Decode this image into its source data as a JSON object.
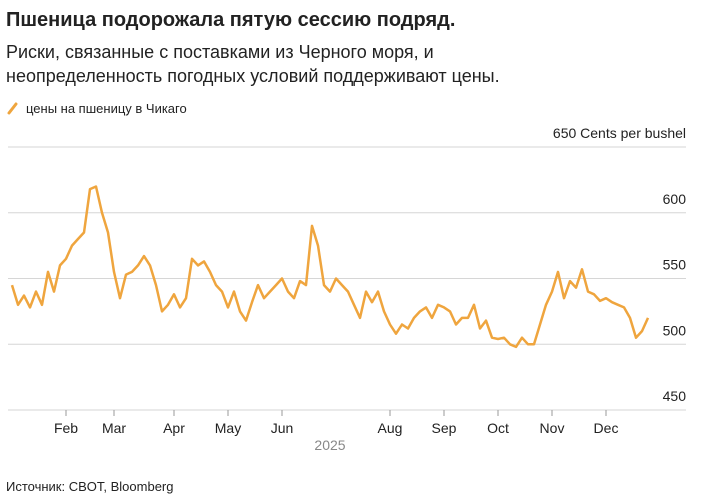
{
  "chart_data": {
    "type": "line",
    "title": "Пшеница подорожала пятую сессию подряд.",
    "subtitle": "Риски, связанные с поставками из Черного моря, и неопределенность погодных условий поддерживают цены.",
    "x_label": "2025",
    "source": "Источник: CBOT, Bloomberg",
    "categories": [
      null,
      null,
      null,
      null,
      null,
      null,
      null,
      null,
      null,
      "Feb",
      null,
      null,
      null,
      null,
      null,
      null,
      null,
      "Mar",
      null,
      null,
      null,
      null,
      null,
      null,
      null,
      null,
      null,
      "Apr",
      null,
      null,
      null,
      null,
      null,
      null,
      null,
      null,
      "May",
      null,
      null,
      null,
      null,
      null,
      null,
      null,
      null,
      "Jun",
      null,
      null,
      null,
      null,
      null,
      null,
      null,
      null,
      null,
      null,
      null,
      null,
      null,
      null,
      null,
      null,
      null,
      "Aug",
      null,
      null,
      null,
      null,
      null,
      null,
      null,
      null,
      "Sep",
      null,
      null,
      null,
      null,
      null,
      null,
      null,
      null,
      "Oct",
      null,
      null,
      null,
      null,
      null,
      null,
      null,
      null,
      "Nov",
      null,
      null,
      null,
      null,
      null,
      null,
      null,
      null,
      "Dec",
      null,
      null,
      null,
      null,
      null,
      null,
      null
    ],
    "series": [
      {
        "name": "цены на пшеницу в Чикаго",
        "color": "#efa53e",
        "values": [
          545,
          530,
          537,
          528,
          540,
          530,
          555,
          540,
          560,
          565,
          575,
          580,
          585,
          618,
          620,
          600,
          585,
          555,
          535,
          553,
          555,
          560,
          567,
          560,
          545,
          525,
          530,
          538,
          528,
          535,
          565,
          560,
          563,
          555,
          545,
          540,
          528,
          540,
          525,
          518,
          532,
          545,
          535,
          540,
          545,
          550,
          540,
          535,
          548,
          545,
          590,
          575,
          545,
          540,
          550,
          545,
          540,
          530,
          520,
          540,
          532,
          540,
          525,
          515,
          508,
          515,
          512,
          520,
          525,
          528,
          520,
          530,
          528,
          525,
          515,
          520,
          520,
          530,
          512,
          518,
          505,
          504,
          505,
          500,
          498,
          505,
          500,
          500,
          515,
          530,
          540,
          555,
          535,
          548,
          543,
          557,
          540,
          538,
          533,
          535,
          532,
          530,
          528,
          520,
          505,
          510,
          520
        ]
      }
    ],
    "ylim": [
      450,
      650
    ],
    "yticks": [
      450,
      500,
      550,
      600,
      {
        "value": 650,
        "label": "650 Cents per bushel"
      }
    ],
    "grid": true,
    "legend": "top-left"
  }
}
